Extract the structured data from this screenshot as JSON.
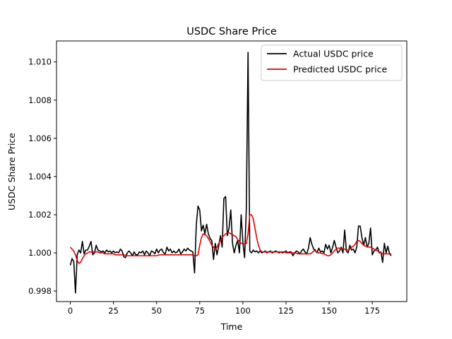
{
  "chart_data": {
    "type": "line",
    "title": "USDC Share Price",
    "xlabel": "Time",
    "ylabel": "USDC Share Price",
    "xlim": [
      -8,
      195
    ],
    "ylim": [
      0.99745,
      1.0111
    ],
    "xticks": [
      0,
      25,
      50,
      75,
      100,
      125,
      150,
      175
    ],
    "yticks": [
      0.998,
      1.0,
      1.002,
      1.004,
      1.006,
      1.008,
      1.01
    ],
    "ytick_labels": [
      "0.998",
      "1.000",
      "1.002",
      "1.004",
      "1.006",
      "1.008",
      "1.010"
    ],
    "grid": false,
    "legend_position": "top-right",
    "series": [
      {
        "name": "Actual USDC price",
        "color": "#000000",
        "x_start": 0,
        "values": [
          0.99935,
          0.9997,
          0.99955,
          0.9979,
          0.9999,
          1.00015,
          1.0,
          1.0006,
          0.99995,
          1.00015,
          1.00015,
          1.00035,
          1.0006,
          0.9999,
          1.0,
          1.0004,
          1.00015,
          1.0001,
          1.00005,
          1.0001,
          1.0,
          1.00015,
          1.00005,
          1.0001,
          1.0,
          1.0001,
          1.0,
          1.00005,
          1.0,
          1.0002,
          1.0001,
          0.9998,
          0.99975,
          1.0,
          1.0001,
          1.0,
          0.99985,
          1.00005,
          0.9999,
          0.9999,
          1.00005,
          1.0,
          1.0001,
          0.9999,
          1.0001,
          1.0,
          0.99985,
          1.0001,
          1.00005,
          0.99995,
          1.0002,
          1.0,
          1.00015,
          1.0002,
          1.0,
          0.99995,
          1.0003,
          1.0001,
          1.0002,
          1.0,
          1.0001,
          1.0,
          1.00005,
          1.0002,
          0.99995,
          1.00005,
          1.0002,
          1.0001,
          1.00025,
          1.00015,
          1.0001,
          1.00005,
          0.99895,
          1.00145,
          1.00245,
          1.00225,
          1.00115,
          1.00145,
          1.001,
          1.0015,
          1.001,
          1.00075,
          1.00065,
          0.99965,
          1.0005,
          0.9999,
          1.00035,
          1.0009,
          1.0003,
          1.00285,
          1.00295,
          1.0009,
          1.0013,
          1.00225,
          1.0005,
          1.0,
          1.0004,
          1.00065,
          1.0,
          1.002,
          1.00055,
          0.99975,
          1.0023,
          1.0105,
          1.0001,
          1.0,
          1.00015,
          1.00005,
          1.0001,
          1.0,
          1.0001,
          1.0,
          1.00005,
          1.0001,
          1.0,
          1.00005,
          1.0001,
          1.0,
          1.00005,
          1.0001,
          1.00005,
          1.0,
          1.00005,
          1.0,
          1.00005,
          1.0001,
          1.0,
          1.00005,
          1.00005,
          0.99985,
          1.0,
          1.0001,
          1.00005,
          0.99995,
          1.0001,
          1.0002,
          1.00005,
          0.99995,
          1.00025,
          1.0008,
          1.00045,
          1.0002,
          1.00015,
          1.0,
          1.00025,
          1.00005,
          1.0001,
          1.0,
          1.00045,
          1.0002,
          1.0004,
          1.0,
          1.0003,
          1.00065,
          1.0003,
          1.0,
          1.0001,
          1.0003,
          1.0,
          1.0012,
          1.0001,
          1.0,
          1.0004,
          1.00015,
          1.0002,
          1.0,
          1.0003,
          1.0014,
          1.0014,
          1.0008,
          1.0004,
          1.0008,
          1.0003,
          1.0005,
          1.0013,
          0.9999,
          1.0001,
          1.00015,
          1.0003,
          1.0,
          1.00005,
          0.9995,
          1.0005,
          1.0,
          1.00035,
          0.99995,
          0.99985
        ]
      },
      {
        "name": "Predicted USDC price",
        "color": "#e00000",
        "x_start": 0,
        "values": [
          1.0003,
          1.0002,
          1.0001,
          0.9999,
          0.9996,
          0.99945,
          0.9995,
          0.9997,
          0.99985,
          0.99995,
          1.0,
          1.00005,
          1.00005,
          1.00005,
          1.00005,
          1.00005,
          1.00005,
          1.0,
          1.0,
          1.0,
          0.99995,
          0.99995,
          0.99995,
          0.99995,
          0.99995,
          0.99995,
          0.9999,
          0.9999,
          0.9999,
          0.9999,
          0.9999,
          0.9999,
          0.99988,
          0.99985,
          0.99985,
          0.99985,
          0.99985,
          0.99985,
          0.99985,
          0.99985,
          0.99985,
          0.99985,
          0.99985,
          0.99985,
          0.99985,
          0.99985,
          0.99985,
          0.99985,
          0.99985,
          0.99985,
          0.99985,
          0.99988,
          0.9999,
          0.9999,
          0.9999,
          0.9999,
          0.9999,
          0.9999,
          0.9999,
          0.9999,
          0.9999,
          0.9999,
          0.9999,
          0.9999,
          0.9999,
          0.9999,
          0.9999,
          0.9999,
          0.9999,
          0.9999,
          0.9999,
          0.9999,
          0.99985,
          0.99985,
          0.9999,
          1.0004,
          1.0008,
          1.001,
          1.00095,
          1.0009,
          1.00075,
          1.0006,
          1.0004,
          1.0003,
          1.0002,
          1.0003,
          1.0005,
          1.00065,
          1.0008,
          1.0009,
          1.001,
          1.00105,
          1.00105,
          1.001,
          1.00095,
          1.0009,
          1.00085,
          1.0007,
          1.0006,
          1.0005,
          1.0005,
          1.00045,
          1.0005,
          1.001,
          1.002,
          1.002,
          1.0018,
          1.0013,
          1.0008,
          1.0004,
          1.00015,
          1.00005,
          1.00005,
          1.00005,
          1.00005,
          1.00005,
          1.00005,
          1.00005,
          1.00005,
          1.00005,
          1.00005,
          1.00005,
          1.00005,
          1.00005,
          1.00005,
          1.0,
          1.0,
          1.0,
          1.0,
          1.0,
          1.0,
          0.99998,
          0.99995,
          0.99995,
          0.99995,
          0.99995,
          0.99995,
          0.99995,
          0.99995,
          0.99995,
          1.0,
          1.0001,
          1.0001,
          1.00005,
          1.0,
          1.0,
          0.99995,
          0.99995,
          0.9999,
          0.99985,
          0.99985,
          0.9999,
          1.0,
          1.0001,
          1.0002,
          1.00025,
          1.00025,
          1.0002,
          1.0002,
          1.0002,
          1.00015,
          1.00015,
          1.0002,
          1.0003,
          1.00035,
          1.00045,
          1.0006,
          1.00065,
          1.0006,
          1.0005,
          1.0004,
          1.00035,
          1.00035,
          1.0003,
          1.0003,
          1.00025,
          1.0002,
          1.00015,
          1.0001,
          1.00005,
          1.0,
          0.99995,
          0.99995,
          0.99995,
          0.99995,
          0.99995,
          0.99995
        ]
      }
    ]
  }
}
